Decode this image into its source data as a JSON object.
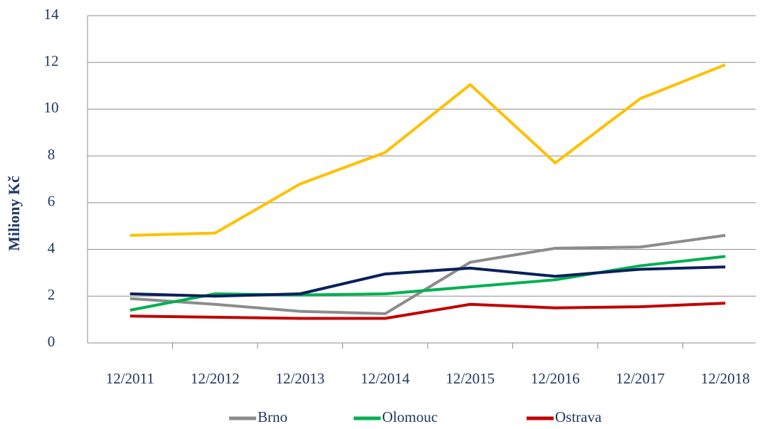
{
  "chart_data": {
    "type": "line",
    "y_label": "Miliony Kč",
    "categories": [
      "12/2011",
      "12/2012",
      "12/2013",
      "12/2014",
      "12/2015",
      "12/2016",
      "12/2017",
      "12/2018"
    ],
    "series": [
      {
        "color": "#ffc000",
        "values": [
          4.6,
          4.7,
          6.8,
          8.15,
          11.05,
          7.7,
          10.45,
          11.9
        ]
      },
      {
        "name": "Brno",
        "color": "#8c8c8c",
        "values": [
          1.9,
          1.65,
          1.35,
          1.25,
          3.45,
          4.05,
          4.1,
          4.6
        ]
      },
      {
        "name": "Olomouc",
        "color": "#00b050",
        "values": [
          1.4,
          2.1,
          2.05,
          2.1,
          2.4,
          2.7,
          3.3,
          3.7
        ]
      },
      {
        "name": "Ostrava",
        "color": "#c00000",
        "values": [
          1.15,
          1.1,
          1.05,
          1.05,
          1.65,
          1.5,
          1.55,
          1.7
        ]
      },
      {
        "color": "#0a1f5c",
        "values": [
          2.1,
          2.0,
          2.1,
          2.95,
          3.2,
          2.85,
          3.15,
          3.25
        ]
      }
    ],
    "ylim": [
      0,
      14
    ],
    "yticks": [
      0,
      2,
      4,
      6,
      8,
      10,
      12,
      14
    ],
    "grid": true
  }
}
